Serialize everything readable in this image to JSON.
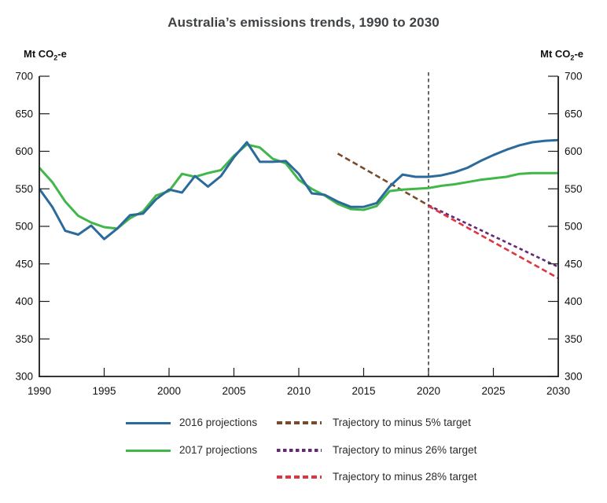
{
  "title": "Australia’s emissions trends, 1990 to 2030",
  "unit_label": {
    "prefix": "Mt CO",
    "sub": "2",
    "suffix": "-e"
  },
  "colors": {
    "axis": "#1a1a1a",
    "title_text": "#3f4245",
    "legend_text": "#2b2b2b",
    "series_2016": "#2b6a9b",
    "series_2017": "#41b649",
    "trajectory_minus5": "#7a4a2a",
    "trajectory_minus26": "#632977",
    "trajectory_minus28": "#de3541",
    "marker_line": "#1a1a1a"
  },
  "chart_data": {
    "type": "line",
    "title": "Australia’s emissions trends, 1990 to 2030",
    "ylabel": "Mt CO2-e",
    "xlabel": "",
    "xlim": [
      1990,
      2030
    ],
    "ylim": [
      300,
      700
    ],
    "x_ticks": [
      1990,
      1995,
      2000,
      2005,
      2010,
      2015,
      2020,
      2025,
      2030
    ],
    "y_ticks": [
      300,
      350,
      400,
      450,
      500,
      550,
      600,
      650,
      700
    ],
    "grid": false,
    "legend_position": "bottom",
    "series": [
      {
        "name": "2016 projections",
        "color": "#2b6a9b",
        "line": "solid",
        "x_start": 1990,
        "x_step": 1,
        "values": [
          550,
          526,
          494,
          489,
          501,
          483,
          497,
          515,
          517,
          536,
          549,
          545,
          567,
          553,
          567,
          592,
          612,
          586,
          586,
          587,
          570,
          544,
          542,
          533,
          526,
          526,
          531,
          553,
          569,
          566,
          566,
          568,
          572,
          578,
          587,
          595,
          602,
          608,
          612,
          614,
          615
        ]
      },
      {
        "name": "2017 projections",
        "color": "#41b649",
        "line": "solid",
        "x_start": 1990,
        "x_step": 1,
        "values": [
          578,
          559,
          533,
          514,
          505,
          499,
          497,
          511,
          520,
          541,
          547,
          570,
          566,
          571,
          575,
          594,
          609,
          605,
          590,
          584,
          562,
          550,
          541,
          530,
          523,
          522,
          527,
          547,
          549,
          550,
          551,
          554,
          556,
          559,
          562,
          564,
          566,
          570,
          571,
          571,
          571
        ]
      },
      {
        "name": "Trajectory to minus 5% target",
        "color": "#7a4a2a",
        "line": "dashed",
        "dash": [
          7,
          4
        ],
        "points": [
          [
            2013,
            597
          ],
          [
            2020,
            528
          ]
        ]
      },
      {
        "name": "Trajectory to minus 26% target",
        "color": "#632977",
        "line": "dashed",
        "dash": [
          4.5,
          3.5
        ],
        "points": [
          [
            2020,
            528
          ],
          [
            2030,
            446
          ]
        ]
      },
      {
        "name": "Trajectory to minus 28% target",
        "color": "#de3541",
        "line": "dashed",
        "dash": [
          7,
          4
        ],
        "points": [
          [
            2020,
            527
          ],
          [
            2030,
            431
          ]
        ]
      }
    ],
    "vertical_marker": {
      "x": 2020,
      "style": "dashed",
      "color": "#1a1a1a"
    }
  },
  "legend": {
    "columns": [
      {
        "series_indices": [
          0,
          1
        ]
      },
      {
        "series_indices": [
          2,
          3,
          4
        ]
      }
    ]
  }
}
